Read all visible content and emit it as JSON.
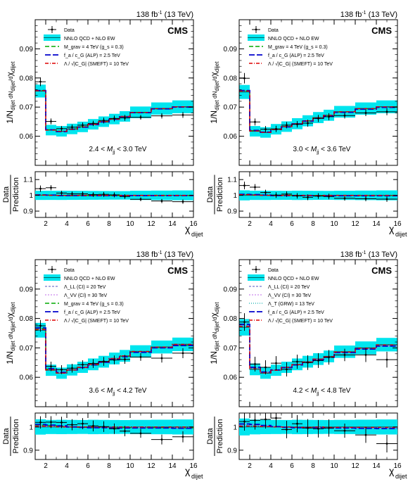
{
  "figure": {
    "lumi": "138 fb",
    "lumi_sup": "-1",
    "energy": "(13 TeV)",
    "experiment": "CMS",
    "ylabel_parts": [
      "1/N",
      "dijet",
      " dN",
      "dijet",
      "/d",
      "χ",
      "dijet"
    ],
    "ratio_ylabel_top": "Data",
    "ratio_ylabel_bottom": "Prediction",
    "xlabel_main": "χ",
    "xlabel_sub": "dijet",
    "x_ticks": [
      2,
      4,
      6,
      8,
      10,
      12,
      14,
      16
    ],
    "colors": {
      "band": "#00e5ee",
      "band_edge": "#00cccc",
      "qcd_line": "#006666",
      "rg": "#00aa00",
      "alp": "#0000cc",
      "smeft": "#dd0000",
      "ci_ll": "#7777cc",
      "ci_vv": "#cc88ee",
      "grw": "#33bbbb",
      "data": "#000000"
    }
  },
  "chart_data": [
    {
      "type": "line",
      "panel": "2.4 < Mjj < 3.0 TeV",
      "mass_bin_label": {
        "lo": "2.4 <",
        "var": "M",
        "sub": "jj",
        "hi": "< 3.0 TeV"
      },
      "x_bins": [
        [
          1,
          2
        ],
        [
          2,
          3
        ],
        [
          3,
          4
        ],
        [
          4,
          5
        ],
        [
          5,
          6
        ],
        [
          6,
          7
        ],
        [
          7,
          8
        ],
        [
          8,
          9
        ],
        [
          9,
          10
        ],
        [
          10,
          12
        ],
        [
          12,
          14
        ],
        [
          14,
          16
        ]
      ],
      "ylim": [
        0.05,
        0.1
      ],
      "yticks": [
        0.06,
        0.07,
        0.08,
        0.09
      ],
      "ratio_ylim": [
        0.86,
        1.15
      ],
      "ratio_yticks": [
        0.9,
        1,
        1.1
      ],
      "legend": [
        "Data",
        "NNLO QCD + NLO EW",
        "M_grav = 4 TeV (g_s = 0.3)",
        "f_a / c_G (ALP) = 2.5 TeV",
        "Λ / √|C_G| (SMEFT) = 10 TeV"
      ],
      "legend_keys": [
        "data",
        "band",
        "rg",
        "alp",
        "smeft"
      ],
      "series": [
        {
          "name": "Data",
          "values": [
            0.0787,
            0.0651,
            0.0626,
            0.0631,
            0.0638,
            0.0644,
            0.0654,
            0.0661,
            0.0663,
            0.0665,
            0.067,
            0.0673
          ],
          "errors": [
            0.0015,
            0.001,
            0.0009,
            0.0009,
            0.0009,
            0.0009,
            0.001,
            0.001,
            0.001,
            0.0008,
            0.0009,
            0.001
          ]
        },
        {
          "name": "NNLO QCD + NLO EW",
          "values": [
            0.0755,
            0.0621,
            0.0617,
            0.0625,
            0.0632,
            0.0641,
            0.065,
            0.0659,
            0.0668,
            0.0682,
            0.0695,
            0.0701
          ],
          "band": [
            0.0022,
            0.0018,
            0.0018,
            0.0018,
            0.0018,
            0.0018,
            0.0018,
            0.0018,
            0.0018,
            0.002,
            0.0021,
            0.0022
          ]
        },
        {
          "name": "M_grav = 4 TeV (g_s = 0.3)",
          "values": [
            0.0757,
            0.0622,
            0.0617,
            0.0625,
            0.0632,
            0.064,
            0.0649,
            0.0658,
            0.0667,
            0.0681,
            0.0694,
            0.07
          ]
        },
        {
          "name": "f_a / c_G (ALP) = 2.5 TeV",
          "values": [
            0.0757,
            0.0622,
            0.0616,
            0.0624,
            0.0631,
            0.064,
            0.0649,
            0.0658,
            0.0667,
            0.0681,
            0.0694,
            0.07
          ]
        },
        {
          "name": "Λ / √|C_G| (SMEFT) = 10 TeV",
          "values": [
            0.0756,
            0.0621,
            0.0617,
            0.0624,
            0.0632,
            0.0641,
            0.065,
            0.0659,
            0.0668,
            0.0682,
            0.0695,
            0.0701
          ]
        }
      ]
    },
    {
      "type": "line",
      "panel": "3.0 < Mjj < 3.6 TeV",
      "mass_bin_label": {
        "lo": "3.0 <",
        "var": "M",
        "sub": "jj",
        "hi": "< 3.6 TeV"
      },
      "x_bins": [
        [
          1,
          2
        ],
        [
          2,
          3
        ],
        [
          3,
          4
        ],
        [
          4,
          5
        ],
        [
          5,
          6
        ],
        [
          6,
          7
        ],
        [
          7,
          8
        ],
        [
          8,
          9
        ],
        [
          9,
          10
        ],
        [
          10,
          12
        ],
        [
          12,
          14
        ],
        [
          14,
          16
        ]
      ],
      "ylim": [
        0.05,
        0.1
      ],
      "yticks": [
        0.06,
        0.07,
        0.08,
        0.09
      ],
      "ratio_ylim": [
        0.86,
        1.15
      ],
      "ratio_yticks": [
        0.9,
        1,
        1.1
      ],
      "legend": [
        "Data",
        "NNLO QCD + NLO EW",
        "M_grav = 4 TeV (g_s = 0.3)",
        "f_a / c_G (ALP) = 2.5 TeV",
        "Λ / √|C_G| (SMEFT) = 10 TeV"
      ],
      "legend_keys": [
        "data",
        "band",
        "rg",
        "alp",
        "smeft"
      ],
      "series": [
        {
          "name": "Data",
          "values": [
            0.0799,
            0.0649,
            0.0624,
            0.0625,
            0.0638,
            0.0641,
            0.0645,
            0.0661,
            0.0667,
            0.0671,
            0.068,
            0.0684
          ],
          "errors": [
            0.0018,
            0.0012,
            0.0011,
            0.0011,
            0.0011,
            0.0011,
            0.0012,
            0.0012,
            0.0012,
            0.001,
            0.0011,
            0.0012
          ]
        },
        {
          "name": "NNLO QCD + NLO EW",
          "values": [
            0.0752,
            0.0617,
            0.0613,
            0.0624,
            0.0633,
            0.0643,
            0.0653,
            0.0664,
            0.0672,
            0.0684,
            0.0695,
            0.0701
          ],
          "band": [
            0.0024,
            0.0018,
            0.0018,
            0.0018,
            0.0018,
            0.0019,
            0.0019,
            0.0019,
            0.0019,
            0.002,
            0.0021,
            0.0022
          ]
        },
        {
          "name": "M_grav = 4 TeV (g_s = 0.3)",
          "values": [
            0.0756,
            0.0619,
            0.0614,
            0.0624,
            0.0633,
            0.0642,
            0.0652,
            0.0663,
            0.0671,
            0.0683,
            0.0694,
            0.07
          ]
        },
        {
          "name": "f_a / c_G (ALP) = 2.5 TeV",
          "values": [
            0.0757,
            0.062,
            0.0614,
            0.0623,
            0.0632,
            0.0642,
            0.0652,
            0.0662,
            0.067,
            0.0682,
            0.0693,
            0.0699
          ]
        },
        {
          "name": "Λ / √|C_G| (SMEFT) = 10 TeV",
          "values": [
            0.0755,
            0.0618,
            0.0613,
            0.0623,
            0.0633,
            0.0643,
            0.0653,
            0.0663,
            0.0672,
            0.0684,
            0.0695,
            0.0701
          ]
        }
      ]
    },
    {
      "type": "line",
      "panel": "3.6 < Mjj < 4.2 TeV",
      "mass_bin_label": {
        "lo": "3.6 <",
        "var": "M",
        "sub": "jj",
        "hi": "< 4.2 TeV"
      },
      "x_bins": [
        [
          1,
          2
        ],
        [
          2,
          3
        ],
        [
          3,
          4
        ],
        [
          4,
          5
        ],
        [
          5,
          6
        ],
        [
          6,
          7
        ],
        [
          7,
          8
        ],
        [
          8,
          9
        ],
        [
          9,
          10
        ],
        [
          10,
          12
        ],
        [
          12,
          14
        ],
        [
          14,
          16
        ]
      ],
      "ylim": [
        0.05,
        0.1
      ],
      "yticks": [
        0.06,
        0.07,
        0.08,
        0.09
      ],
      "ratio_ylim": [
        0.86,
        1.06
      ],
      "ratio_yticks": [
        0.9,
        1
      ],
      "legend": [
        "Data",
        "NNLO QCD + NLO EW",
        "Λ_LL (CI) = 20 TeV",
        "Λ_VV (CI) = 30 TeV",
        "M_grav = 4 TeV (g_s = 0.3)",
        "f_a / c_G (ALP) = 2.5 TeV",
        "Λ / √|C_G| (SMEFT) = 10 TeV"
      ],
      "legend_keys": [
        "data",
        "band",
        "ci_ll",
        "ci_vv",
        "rg",
        "alp",
        "smeft"
      ],
      "series": [
        {
          "name": "Data",
          "values": [
            0.0775,
            0.0637,
            0.0626,
            0.0631,
            0.0643,
            0.0647,
            0.0654,
            0.0659,
            0.0661,
            0.0669,
            0.0665,
            0.0682
          ],
          "errors": [
            0.002,
            0.0016,
            0.0015,
            0.0015,
            0.0015,
            0.0015,
            0.0015,
            0.0015,
            0.0015,
            0.0013,
            0.0015,
            0.0017
          ]
        },
        {
          "name": "NNLO QCD + NLO EW",
          "values": [
            0.076,
            0.0624,
            0.0614,
            0.0625,
            0.0634,
            0.0644,
            0.0653,
            0.0664,
            0.0673,
            0.0688,
            0.0703,
            0.0712
          ],
          "band": [
            0.0025,
            0.0019,
            0.0019,
            0.0019,
            0.0019,
            0.002,
            0.002,
            0.002,
            0.002,
            0.0021,
            0.0022,
            0.0023
          ]
        },
        {
          "name": "Λ_LL (CI) = 20 TeV",
          "values": [
            0.0765,
            0.0627,
            0.0616,
            0.0626,
            0.0634,
            0.0643,
            0.0652,
            0.0662,
            0.0671,
            0.0686,
            0.07,
            0.0708
          ]
        },
        {
          "name": "Λ_VV (CI) = 30 TeV",
          "values": [
            0.0763,
            0.0626,
            0.0615,
            0.0625,
            0.0634,
            0.0643,
            0.0652,
            0.0663,
            0.0672,
            0.0687,
            0.0701,
            0.071
          ]
        },
        {
          "name": "M_grav = 4 TeV (g_s = 0.3)",
          "values": [
            0.0766,
            0.0628,
            0.0616,
            0.0625,
            0.0633,
            0.0642,
            0.0651,
            0.0662,
            0.0671,
            0.0686,
            0.0701,
            0.0709
          ]
        },
        {
          "name": "f_a / c_G (ALP) = 2.5 TeV",
          "values": [
            0.0768,
            0.0629,
            0.0617,
            0.0625,
            0.0633,
            0.0642,
            0.0651,
            0.0661,
            0.067,
            0.0685,
            0.07,
            0.0708
          ]
        },
        {
          "name": "Λ / √|C_G| (SMEFT) = 10 TeV",
          "values": [
            0.0762,
            0.0625,
            0.0614,
            0.0625,
            0.0634,
            0.0644,
            0.0653,
            0.0664,
            0.0673,
            0.0688,
            0.0703,
            0.0712
          ]
        }
      ]
    },
    {
      "type": "line",
      "panel": "4.2 < Mjj < 4.8 TeV",
      "mass_bin_label": {
        "lo": "4.2 <",
        "var": "M",
        "sub": "jj",
        "hi": "< 4.8 TeV"
      },
      "x_bins": [
        [
          1,
          2
        ],
        [
          2,
          3
        ],
        [
          3,
          4
        ],
        [
          4,
          5
        ],
        [
          5,
          6
        ],
        [
          6,
          7
        ],
        [
          7,
          8
        ],
        [
          8,
          9
        ],
        [
          9,
          10
        ],
        [
          10,
          12
        ],
        [
          12,
          14
        ],
        [
          14,
          16
        ]
      ],
      "ylim": [
        0.05,
        0.1
      ],
      "yticks": [
        0.06,
        0.07,
        0.08,
        0.09
      ],
      "ratio_ylim": [
        0.86,
        1.06
      ],
      "ratio_yticks": [
        0.9,
        1
      ],
      "legend": [
        "Data",
        "NNLO QCD + NLO EW",
        "Λ_LL (CI) = 20 TeV",
        "Λ_VV (CI) = 30 TeV",
        "Λ_T (GRW) = 13 TeV",
        "f_a / c_G (ALP) = 2.5 TeV",
        "Λ / √|C_G| (SMEFT) = 10 TeV"
      ],
      "legend_keys": [
        "data",
        "band",
        "ci_ll",
        "ci_vv",
        "grw",
        "alp",
        "smeft"
      ],
      "series": [
        {
          "name": "Data",
          "values": [
            0.0788,
            0.0645,
            0.0634,
            0.0648,
            0.0627,
            0.0653,
            0.065,
            0.0657,
            0.0668,
            0.0676,
            0.0676,
            0.066
          ],
          "errors": [
            0.003,
            0.0025,
            0.0024,
            0.0024,
            0.0024,
            0.0024,
            0.0025,
            0.0025,
            0.0025,
            0.0021,
            0.0024,
            0.0027
          ]
        },
        {
          "name": "NNLO QCD + NLO EW",
          "values": [
            0.077,
            0.0627,
            0.0614,
            0.0624,
            0.0634,
            0.0644,
            0.0653,
            0.0662,
            0.0671,
            0.0687,
            0.07,
            0.0711
          ],
          "band": [
            0.0028,
            0.002,
            0.0019,
            0.0019,
            0.0019,
            0.002,
            0.002,
            0.002,
            0.002,
            0.0021,
            0.0022,
            0.0023
          ]
        },
        {
          "name": "Λ_LL (CI) = 20 TeV",
          "values": [
            0.0776,
            0.0631,
            0.0617,
            0.0625,
            0.0634,
            0.0643,
            0.0652,
            0.0661,
            0.0669,
            0.0685,
            0.0697,
            0.0707
          ]
        },
        {
          "name": "Λ_VV (CI) = 30 TeV",
          "values": [
            0.0781,
            0.0634,
            0.0618,
            0.0625,
            0.0633,
            0.0642,
            0.0651,
            0.066,
            0.0668,
            0.0684,
            0.0696,
            0.0706
          ]
        },
        {
          "name": "Λ_T (GRW) = 13 TeV",
          "values": [
            0.0779,
            0.0633,
            0.0617,
            0.0625,
            0.0633,
            0.0642,
            0.0651,
            0.066,
            0.0668,
            0.0684,
            0.0696,
            0.0706
          ]
        },
        {
          "name": "f_a / c_G (ALP) = 2.5 TeV",
          "values": [
            0.078,
            0.0634,
            0.0618,
            0.0625,
            0.0633,
            0.0642,
            0.0651,
            0.066,
            0.0668,
            0.0684,
            0.0696,
            0.0706
          ]
        },
        {
          "name": "Λ / √|C_G| (SMEFT) = 10 TeV",
          "values": [
            0.0773,
            0.0629,
            0.0615,
            0.0624,
            0.0634,
            0.0643,
            0.0652,
            0.0662,
            0.067,
            0.0686,
            0.0699,
            0.071
          ]
        }
      ]
    }
  ]
}
